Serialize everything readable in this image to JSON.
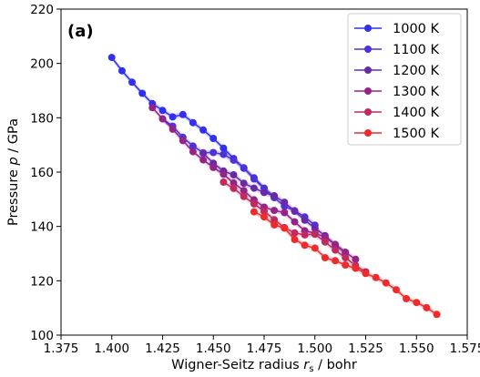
{
  "chart_data": {
    "type": "line",
    "panel_label": "(a)",
    "xlabel_prefix": "Wigner-Seitz radius ",
    "xlabel_var": "r",
    "xlabel_sub": "s",
    "xlabel_suffix": " / bohr",
    "ylabel_prefix": "Pressure ",
    "ylabel_var": "p",
    "ylabel_suffix": " / GPa",
    "xlim": [
      1.375,
      1.575
    ],
    "ylim": [
      100,
      220
    ],
    "xticks": [
      "1.375",
      "1.400",
      "1.425",
      "1.450",
      "1.475",
      "1.500",
      "1.525",
      "1.550",
      "1.575"
    ],
    "yticks": [
      "100",
      "120",
      "140",
      "160",
      "180",
      "200",
      "220"
    ],
    "legend_position": "top-right",
    "grid": false,
    "series": [
      {
        "name": "1000 K",
        "color": "#3030ee",
        "x": [
          1.4,
          1.405,
          1.41,
          1.415,
          1.42,
          1.425,
          1.43,
          1.435,
          1.44,
          1.445,
          1.45,
          1.455,
          1.46,
          1.465,
          1.47,
          1.475,
          1.48
        ],
        "y": [
          202.2,
          197.3,
          193.1,
          189.0,
          185.2,
          182.7,
          180.3,
          181.2,
          178.2,
          175.5,
          172.4,
          168.8,
          165.0,
          161.4,
          157.9,
          154.1,
          150.7
        ]
      },
      {
        "name": "1100 K",
        "color": "#5030d8",
        "x": [
          1.425,
          1.43,
          1.435,
          1.44,
          1.445,
          1.45,
          1.455,
          1.46,
          1.465,
          1.47,
          1.475,
          1.48,
          1.485,
          1.49,
          1.495,
          1.5
        ],
        "y": [
          179.6,
          176.9,
          172.8,
          169.6,
          167.1,
          167.2,
          166.5,
          164.4,
          161.6,
          157.5,
          154.0,
          150.6,
          147.4,
          145.8,
          143.5,
          140.5
        ]
      },
      {
        "name": "1200 K",
        "color": "#6a2aa8",
        "x": [
          1.445,
          1.45,
          1.455,
          1.46,
          1.465,
          1.47,
          1.475,
          1.48,
          1.485,
          1.49,
          1.495,
          1.5,
          1.505,
          1.51,
          1.515
        ],
        "y": [
          166.9,
          163.3,
          160.4,
          159.0,
          155.9,
          154.1,
          152.5,
          151.3,
          148.9,
          145.6,
          142.3,
          139.4,
          136.6,
          133.2,
          130.2
        ]
      },
      {
        "name": "1300 K",
        "color": "#942488",
        "x": [
          1.42,
          1.425,
          1.43,
          1.435,
          1.44,
          1.445,
          1.45,
          1.455,
          1.46,
          1.465,
          1.47,
          1.475,
          1.48,
          1.485,
          1.49,
          1.495,
          1.5,
          1.505,
          1.51,
          1.515,
          1.52
        ],
        "y": [
          183.7,
          179.6,
          175.8,
          171.6,
          167.5,
          164.5,
          161.7,
          159.2,
          156.0,
          153.2,
          149.8,
          147.1,
          145.9,
          145.1,
          141.7,
          138.4,
          137.5,
          136.0,
          133.4,
          130.5,
          127.9
        ]
      },
      {
        "name": "1400 K",
        "color": "#c02a5e",
        "x": [
          1.455,
          1.46,
          1.465,
          1.47,
          1.475,
          1.48,
          1.485,
          1.49,
          1.495,
          1.5,
          1.505,
          1.51,
          1.515,
          1.52,
          1.525
        ],
        "y": [
          156.3,
          154.0,
          151.0,
          148.3,
          145.6,
          142.5,
          139.6,
          137.6,
          136.9,
          137.1,
          134.3,
          131.3,
          128.5,
          125.6,
          123.3
        ]
      },
      {
        "name": "1500 K",
        "color": "#ee2a2a",
        "x": [
          1.47,
          1.475,
          1.48,
          1.485,
          1.49,
          1.495,
          1.5,
          1.505,
          1.51,
          1.515,
          1.52,
          1.525,
          1.53,
          1.535,
          1.54,
          1.545,
          1.55,
          1.555,
          1.56
        ],
        "y": [
          145.4,
          143.5,
          140.6,
          139.4,
          135.2,
          133.1,
          132.0,
          128.5,
          127.4,
          125.8,
          124.6,
          122.7,
          121.2,
          119.2,
          116.7,
          113.4,
          112.0,
          110.1,
          107.6
        ]
      }
    ]
  }
}
